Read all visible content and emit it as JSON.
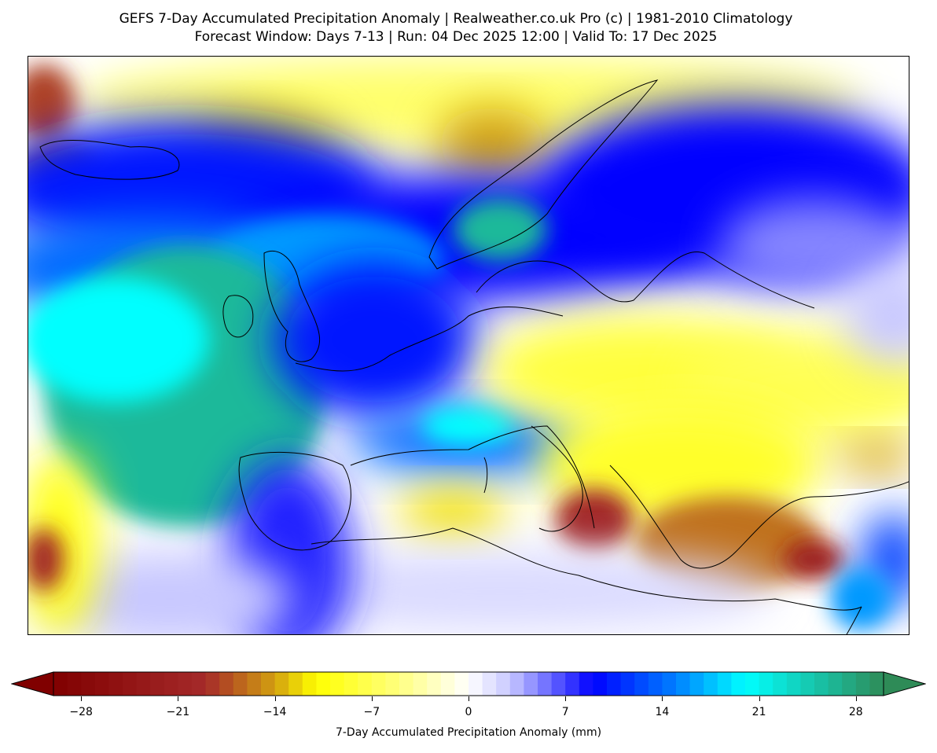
{
  "title": {
    "line1": "GEFS 7-Day Accumulated Precipitation Anomaly | Realweather.co.uk Pro (c) | 1981-2010 Climatology",
    "line2": "Forecast Window: Days 7-13 | Run: 04 Dec 2025 12:00 | Valid To: 17 Dec 2025"
  },
  "colorbar": {
    "label": "7-Day Accumulated Precipitation Anomaly (mm)",
    "range": [
      -30,
      30
    ],
    "step": 1,
    "ticks": [
      -28,
      -21,
      -14,
      -7,
      0,
      7,
      14,
      21,
      28
    ],
    "tick_labels": [
      "−28",
      "−21",
      "−14",
      "−7",
      "0",
      "7",
      "14",
      "21",
      "28"
    ],
    "colors": {
      "min": "#800000",
      "dry": "#a52a2a",
      "orange": "#d2a010",
      "yellow": "#ffff00",
      "neutral": "#ffffff",
      "lavender": "#c8c8ff",
      "blue": "#0000ff",
      "mid_blue": "#0080ff",
      "cyan": "#00ffff",
      "max": "#2e8b57"
    }
  }
}
